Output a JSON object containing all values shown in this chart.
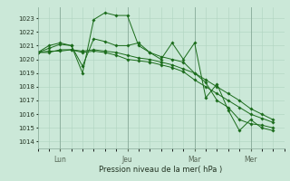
{
  "bg_color": "#cbe8d8",
  "line_color": "#1a6b1a",
  "xlabel": "Pression niveau de la mer( hPa )",
  "ylim": [
    1013.5,
    1023.8
  ],
  "yticks": [
    1014,
    1015,
    1016,
    1017,
    1018,
    1019,
    1020,
    1021,
    1022,
    1023
  ],
  "xlim": [
    0,
    22
  ],
  "vlines": [
    2,
    8,
    14,
    19
  ],
  "xtick_positions": [
    2,
    8,
    14,
    19
  ],
  "xtick_labels": [
    "Lun",
    "Jeu",
    "Mar",
    "Mer"
  ],
  "series1_x": [
    0,
    1,
    2,
    3,
    4,
    5,
    6,
    7,
    8,
    9,
    10,
    11,
    12,
    13,
    14,
    15,
    16,
    17,
    18,
    19,
    20,
    21
  ],
  "series1_y": [
    1020.5,
    1020.8,
    1021.1,
    1021.0,
    1019.0,
    1022.9,
    1023.4,
    1023.2,
    1023.2,
    1021.0,
    1020.5,
    1020.0,
    1021.2,
    1020.0,
    1021.2,
    1017.2,
    1018.2,
    1016.3,
    1014.8,
    1015.6,
    1015.0,
    1014.8
  ],
  "series2_x": [
    0,
    1,
    2,
    3,
    4,
    5,
    6,
    7,
    8,
    9,
    10,
    11,
    12,
    13,
    14,
    15,
    16,
    17,
    18,
    19,
    20,
    21
  ],
  "series2_y": [
    1020.5,
    1021.0,
    1021.2,
    1021.0,
    1019.5,
    1021.5,
    1021.3,
    1021.0,
    1021.0,
    1021.2,
    1020.5,
    1020.2,
    1020.0,
    1019.8,
    1019.0,
    1018.3,
    1017.0,
    1016.5,
    1015.6,
    1015.3,
    1015.2,
    1015.0
  ],
  "series3_x": [
    0,
    1,
    2,
    3,
    4,
    5,
    6,
    7,
    8,
    9,
    10,
    11,
    12,
    13,
    14,
    15,
    16,
    17,
    18,
    19,
    20,
    21
  ],
  "series3_y": [
    1020.5,
    1020.5,
    1020.7,
    1020.7,
    1020.5,
    1020.6,
    1020.5,
    1020.3,
    1020.0,
    1019.9,
    1019.8,
    1019.6,
    1019.4,
    1019.1,
    1018.5,
    1018.0,
    1017.5,
    1017.0,
    1016.5,
    1016.0,
    1015.7,
    1015.4
  ],
  "series4_x": [
    0,
    1,
    2,
    3,
    4,
    5,
    6,
    7,
    8,
    9,
    10,
    11,
    12,
    13,
    14,
    15,
    16,
    17,
    18,
    19,
    20,
    21
  ],
  "series4_y": [
    1020.5,
    1020.6,
    1020.6,
    1020.7,
    1020.6,
    1020.7,
    1020.6,
    1020.5,
    1020.3,
    1020.1,
    1020.0,
    1019.8,
    1019.6,
    1019.3,
    1019.0,
    1018.5,
    1018.0,
    1017.5,
    1017.0,
    1016.4,
    1016.0,
    1015.6
  ]
}
